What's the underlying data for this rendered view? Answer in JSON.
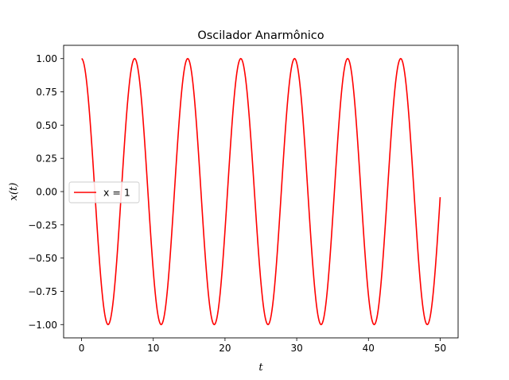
{
  "chart_data": {
    "type": "line",
    "title": "Oscilador Anarmônico",
    "xlabel": "t",
    "ylabel": "x(t)",
    "xlim": [
      -2.5,
      52.5
    ],
    "ylim": [
      -1.1,
      1.1
    ],
    "x_ticks": [
      0,
      10,
      20,
      30,
      40,
      50
    ],
    "x_tick_labels": [
      "0",
      "10",
      "20",
      "30",
      "40",
      "50"
    ],
    "y_ticks": [
      1.0,
      0.75,
      0.5,
      0.25,
      0.0,
      -0.25,
      -0.5,
      -0.75,
      -1.0
    ],
    "y_tick_labels": [
      "1.00",
      "0.75",
      "0.50",
      "0.25",
      "0.00",
      "−0.25",
      "−0.50",
      "−0.75",
      "−1.00"
    ],
    "grid": false,
    "legend_position": "center-left",
    "series": [
      {
        "name": "x = 1",
        "color": "#ff0000",
        "x_range": [
          0,
          50
        ],
        "peaks": [
          {
            "t": 0.0,
            "x": 1.0
          },
          {
            "t": 7.4,
            "x": 1.0
          },
          {
            "t": 14.8,
            "x": 1.0
          },
          {
            "t": 22.2,
            "x": 1.0
          },
          {
            "t": 29.7,
            "x": 1.0
          },
          {
            "t": 37.1,
            "x": 1.0
          },
          {
            "t": 44.5,
            "x": 1.0
          }
        ],
        "troughs": [
          {
            "t": 3.7,
            "x": -1.0
          },
          {
            "t": 11.1,
            "x": -1.0
          },
          {
            "t": 18.5,
            "x": -1.0
          },
          {
            "t": 26.0,
            "x": -1.0
          },
          {
            "t": 33.4,
            "x": -1.0
          },
          {
            "t": 40.8,
            "x": -1.0
          },
          {
            "t": 48.2,
            "x": -1.0
          }
        ],
        "end_point": {
          "t": 50.0,
          "x": -0.05
        }
      }
    ]
  }
}
